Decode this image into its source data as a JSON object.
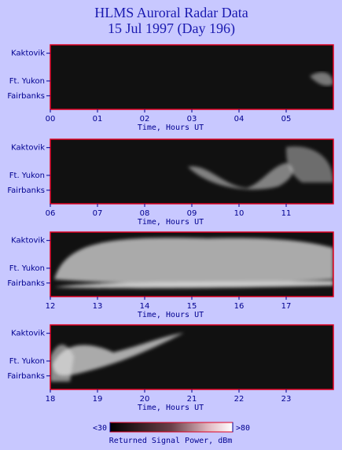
{
  "header": {
    "title": "HLMS Auroral Radar Data",
    "subtitle": "15 Jul 1997 (Day 196)"
  },
  "chart_data": [
    {
      "type": "image",
      "x_label": "Time, Hours UT",
      "y_labels": [
        "Kaktovik",
        "Ft. Yukon",
        "Fairbanks"
      ],
      "xlim": [
        0,
        6
      ],
      "xticks": [
        {
          "value": 0,
          "label": "00"
        },
        {
          "value": 1,
          "label": "01"
        },
        {
          "value": 2,
          "label": "02"
        },
        {
          "value": 3,
          "label": "03"
        },
        {
          "value": 4,
          "label": "04"
        },
        {
          "value": 5,
          "label": "05"
        }
      ]
    },
    {
      "type": "image",
      "x_label": "Time, Hours UT",
      "y_labels": [
        "Kaktovik",
        "Ft. Yukon",
        "Fairbanks"
      ],
      "xlim": [
        6,
        12
      ],
      "xticks": [
        {
          "value": 6,
          "label": "06"
        },
        {
          "value": 7,
          "label": "07"
        },
        {
          "value": 8,
          "label": "08"
        },
        {
          "value": 9,
          "label": "09"
        },
        10,
        11
      ]
    },
    {
      "type": "image",
      "x_label": "Time, Hours UT",
      "y_labels": [
        "Kaktovik",
        "Ft. Yukon",
        "Fairbanks"
      ],
      "xlim": [
        12,
        18
      ],
      "xticks": [
        12,
        13,
        14,
        15,
        16,
        17
      ]
    },
    {
      "type": "image",
      "x_label": "Time, Hours UT",
      "y_labels": [
        "Kaktovik",
        "Ft. Yukon",
        "Fairbanks"
      ],
      "xlim": [
        18,
        24
      ],
      "xticks": [
        18,
        19,
        20,
        21,
        22,
        23
      ]
    }
  ],
  "colorbar": {
    "label": "Returned Signal Power, dBm",
    "lim": [
      30,
      80
    ],
    "ticks": [
      {
        "value": 30,
        "label": "<30"
      },
      {
        "value": 80,
        "label": ">80"
      }
    ]
  }
}
